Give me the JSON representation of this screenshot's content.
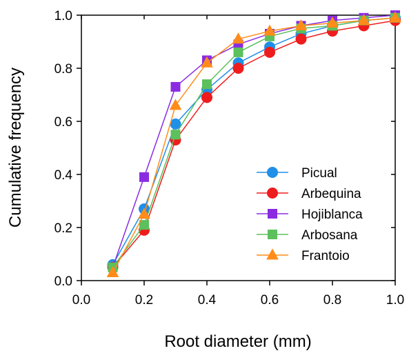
{
  "chart_data": {
    "type": "line",
    "xlabel": "Root diameter (mm)",
    "ylabel": "Cumulative frequency",
    "xlim": [
      0.0,
      1.0
    ],
    "ylim": [
      0.0,
      1.0
    ],
    "xticks": [
      0.0,
      0.2,
      0.4,
      0.6,
      0.8,
      1.0
    ],
    "yticks": [
      0.0,
      0.2,
      0.4,
      0.6,
      0.8,
      1.0
    ],
    "xtick_labels": [
      "0.0",
      "0.2",
      "0.4",
      "0.6",
      "0.8",
      "1.0"
    ],
    "ytick_labels": [
      "0.0",
      "0.2",
      "0.4",
      "0.6",
      "0.8",
      "1.0"
    ],
    "grid": false,
    "legend_position": "bottom-right",
    "x": [
      0.1,
      0.2,
      0.3,
      0.4,
      0.5,
      0.6,
      0.7,
      0.8,
      0.9,
      1.0
    ],
    "series": [
      {
        "name": "Picual",
        "color": "#1f8fe8",
        "marker": "circle",
        "values": [
          0.06,
          0.27,
          0.59,
          0.72,
          0.82,
          0.88,
          0.93,
          0.96,
          0.98,
          0.99
        ]
      },
      {
        "name": "Arbequina",
        "color": "#ee1c1c",
        "marker": "circle",
        "values": [
          0.05,
          0.19,
          0.53,
          0.69,
          0.8,
          0.86,
          0.91,
          0.94,
          0.96,
          0.98
        ]
      },
      {
        "name": "Hojiblanca",
        "color": "#8a2be2",
        "marker": "square",
        "values": [
          0.05,
          0.39,
          0.73,
          0.83,
          0.89,
          0.93,
          0.96,
          0.98,
          0.99,
          1.0
        ]
      },
      {
        "name": "Arbosana",
        "color": "#5cc05c",
        "marker": "square",
        "values": [
          0.05,
          0.21,
          0.55,
          0.74,
          0.86,
          0.92,
          0.95,
          0.96,
          0.98,
          0.99
        ]
      },
      {
        "name": "Frantoio",
        "color": "#ff8c1a",
        "marker": "triangle",
        "values": [
          0.03,
          0.25,
          0.66,
          0.82,
          0.91,
          0.94,
          0.96,
          0.97,
          0.98,
          0.99
        ]
      }
    ]
  }
}
